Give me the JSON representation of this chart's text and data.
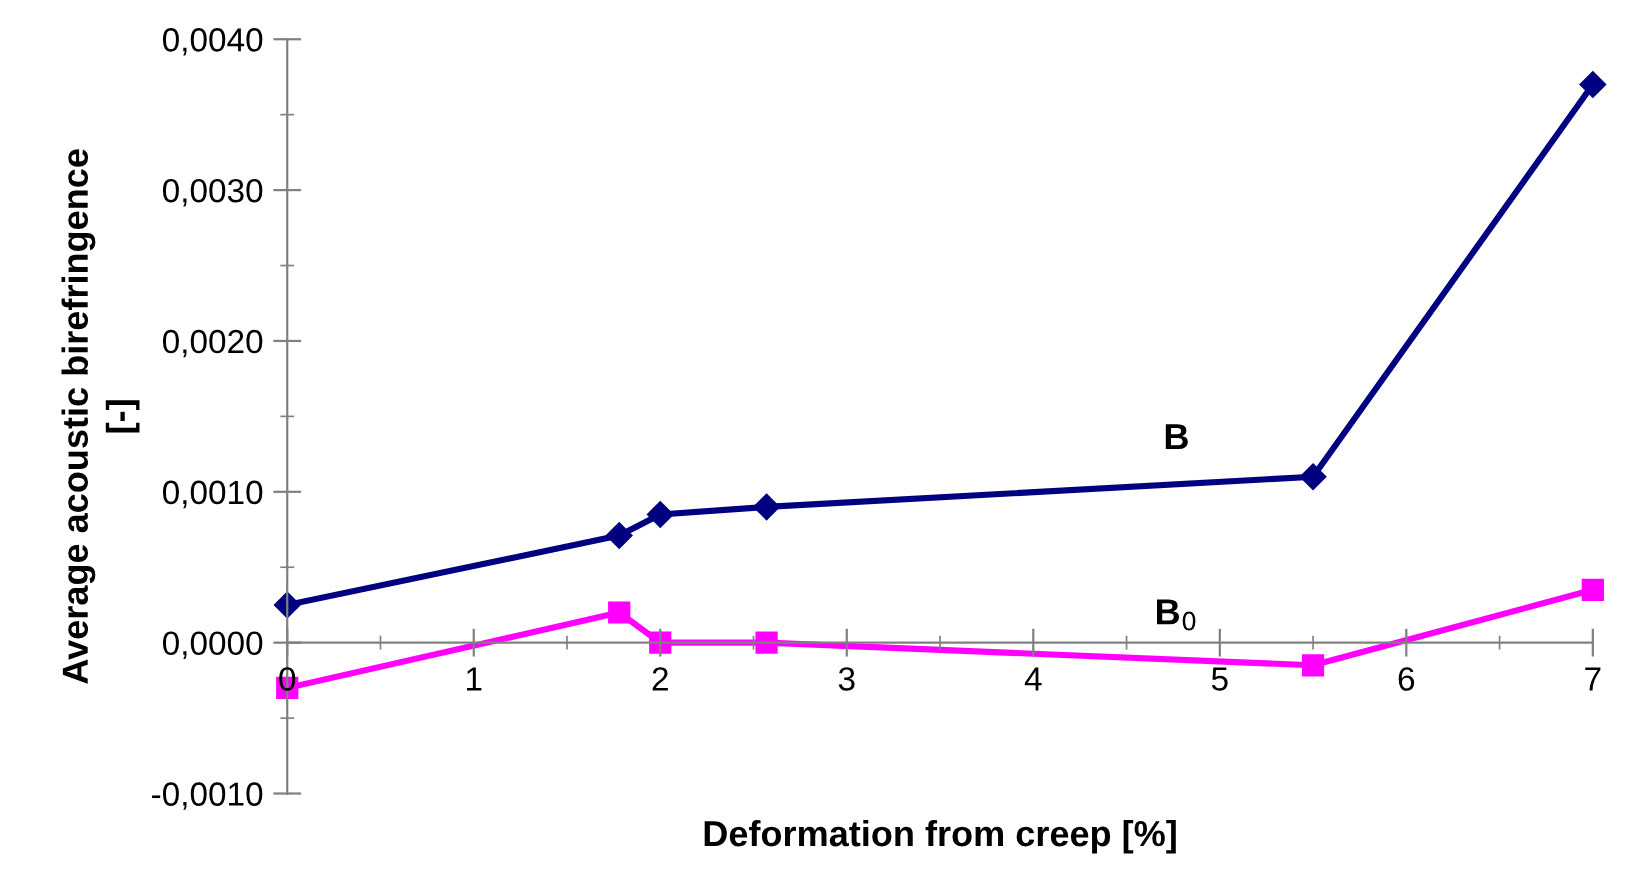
{
  "chart_data": {
    "type": "line",
    "xlabel": "Deformation from creep [%]",
    "ylabel": "Average acoustic birefringence\n[-]",
    "xlim": [
      0,
      7
    ],
    "xticks": [
      0,
      1,
      2,
      3,
      4,
      5,
      6,
      7
    ],
    "ylim": [
      -0.001,
      0.004
    ],
    "yticks": [
      {
        "value": -0.001,
        "label": "-0,0010"
      },
      {
        "value": 0,
        "label": "0,0000"
      },
      {
        "value": 0.001,
        "label": "0,0010"
      },
      {
        "value": 0.002,
        "label": "0,0020"
      },
      {
        "value": 0.003,
        "label": "0,0030"
      },
      {
        "value": 0.004,
        "label": "0,0040"
      }
    ],
    "grid": false,
    "legend": false,
    "line_style": "solid",
    "series": [
      {
        "name": "B",
        "color": "#000080",
        "marker": "diamond",
        "x": [
          0,
          1.78,
          2.0,
          2.57,
          5.5,
          7
        ],
        "values": [
          0.00025,
          0.00071,
          0.00085,
          0.0009,
          0.0011,
          0.0037
        ]
      },
      {
        "name": "B$_{0}$",
        "color": "#ff00ff",
        "marker": "square",
        "x": [
          0,
          1.78,
          2.0,
          2.57,
          5.5,
          7
        ],
        "values": [
          -0.0003,
          0.0002,
          0.0,
          0.0,
          -0.00015,
          0.00035
        ]
      }
    ]
  }
}
